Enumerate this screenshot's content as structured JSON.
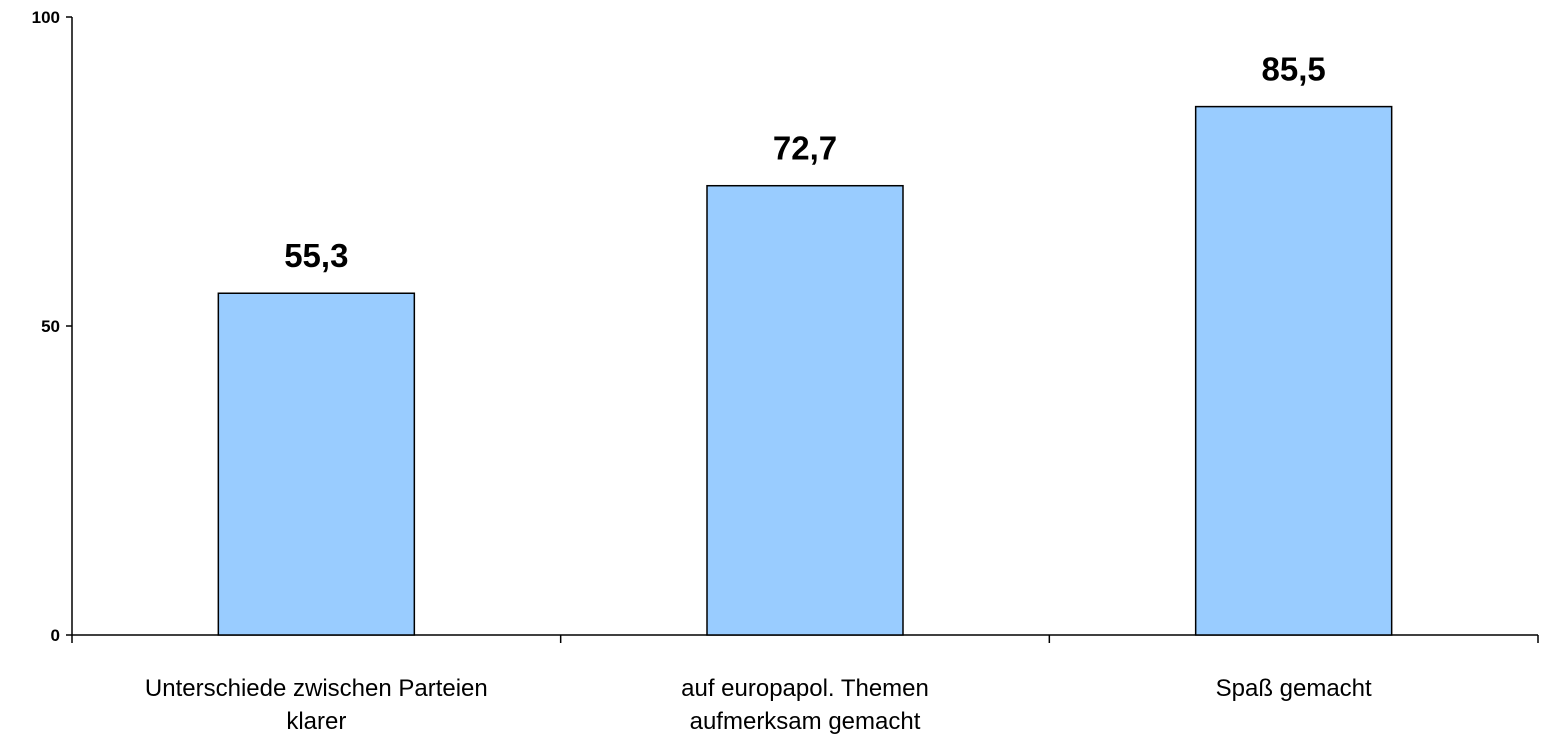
{
  "chart_data": {
    "type": "bar",
    "categories": [
      [
        "Unterschiede zwischen Parteien",
        "klarer"
      ],
      [
        "auf europapol. Themen",
        "aufmerksam gemacht"
      ],
      [
        "Spaß gemacht"
      ]
    ],
    "values": [
      55.3,
      72.7,
      85.5
    ],
    "value_labels": [
      "55,3",
      "72,7",
      "85,5"
    ],
    "y_ticks": [
      0,
      50,
      100
    ],
    "y_tick_labels": [
      "0",
      "50",
      "100"
    ],
    "ylim": [
      0,
      100
    ],
    "grid": false,
    "bar_color": "#99ccff",
    "bar_border_color": "#000000"
  }
}
